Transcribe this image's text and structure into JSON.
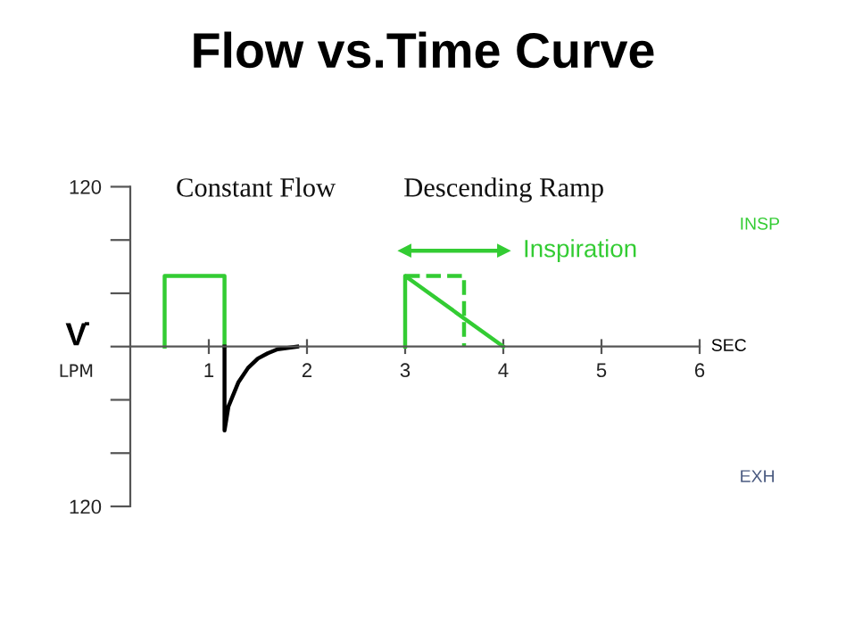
{
  "chart_data": {
    "type": "line",
    "title": "Flow vs.Time Curve",
    "xlabel": "SEC",
    "ylabel": "V̇",
    "annotations": [
      "LPM",
      "Constant Flow",
      "Descending Ramp",
      {
        "text": "Inspiration",
        "x": 4,
        "y": 72
      },
      "INSP",
      "EXH"
    ],
    "series": [
      {
        "color": "#33cc33",
        "x": [
          0.55,
          0.55,
          1.16,
          1.16
        ],
        "values": [
          0,
          53,
          53,
          0
        ]
      },
      {
        "color": "#000000",
        "x": [
          1.16,
          1.16,
          1.2,
          1.3,
          1.4,
          1.5,
          1.6,
          1.7,
          1.8,
          1.9
        ],
        "values": [
          0,
          -63,
          -45,
          -27,
          -16,
          -9,
          -5,
          -2,
          -1,
          0
        ]
      },
      {
        "color": "#33cc33",
        "x": [
          3,
          3,
          4
        ],
        "values": [
          0,
          53,
          0
        ]
      },
      {
        "color": "#33cc33",
        "x": [
          3,
          3.6,
          3.6
        ],
        "values": [
          53,
          53,
          0
        ],
        "line_style": "dashed"
      },
      {
        "color": "#33cc33",
        "x": [
          3,
          4
        ],
        "values": [
          72,
          72
        ],
        "marker": "triangle"
      }
    ],
    "xlim": [
      0.2,
      6
    ],
    "ylim": [
      -120,
      120
    ],
    "xticks": [
      1,
      2,
      3,
      4,
      5,
      6
    ],
    "yticks": [
      {
        "value": 120,
        "label": "120"
      },
      {
        "value": 80,
        "label": null
      },
      {
        "value": 40,
        "label": null
      },
      {
        "value": 0,
        "label": null
      },
      {
        "value": -40,
        "label": null
      },
      {
        "value": -80,
        "label": null
      },
      {
        "value": -120,
        "label": "120"
      }
    ],
    "grid": false,
    "legend": false
  }
}
